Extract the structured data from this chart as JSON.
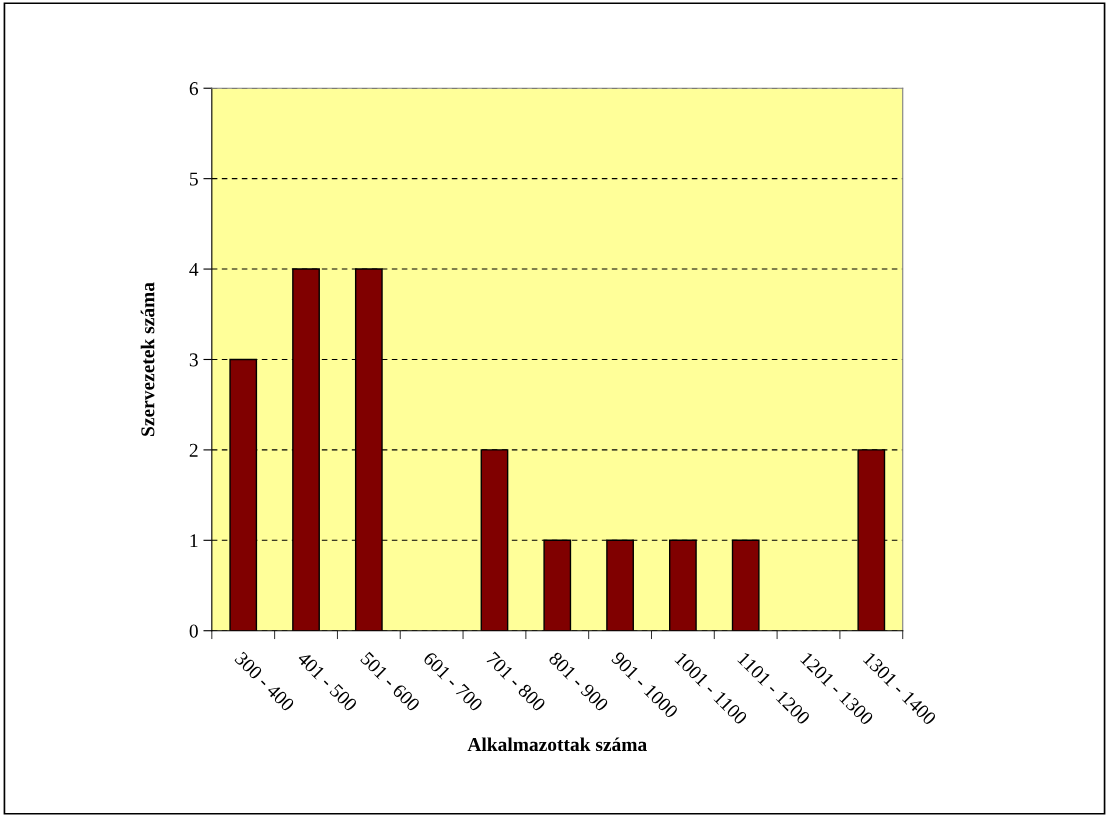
{
  "chart_data": {
    "type": "bar",
    "categories": [
      "300 - 400",
      "401 - 500",
      "501 - 600",
      "601 - 700",
      "701 - 800",
      "801 - 900",
      "901 - 1000",
      "1001 - 1100",
      "1101 - 1200",
      "1201 - 1300",
      "1301 - 1400"
    ],
    "values": [
      3,
      4,
      4,
      0,
      2,
      1,
      1,
      1,
      1,
      0,
      2
    ],
    "color": "#800000",
    "xlabel": "Alkalmazottak száma",
    "ylabel": "Szervezetek száma",
    "ylim": [
      0,
      6
    ],
    "yticks": [
      0,
      1,
      2,
      3,
      4,
      5,
      6
    ],
    "grid": "y"
  }
}
